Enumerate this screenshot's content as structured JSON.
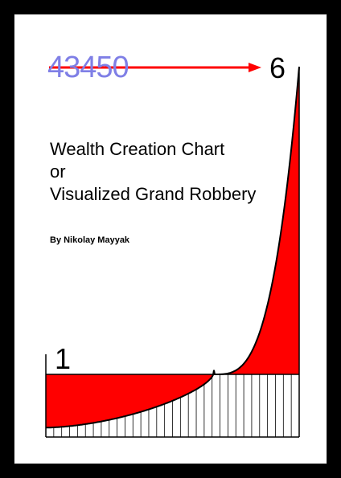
{
  "cover": {
    "start_number": "43450",
    "end_number": "6",
    "baseline_number": "1",
    "title_lines": [
      "Wealth Creation Chart",
      "or",
      "Visualized Grand Robbery"
    ],
    "author": "By Nikolay Mayyak"
  },
  "colors": {
    "background": "#000000",
    "page": "#ffffff",
    "fill": "#ff0000",
    "arrow": "#ff0000",
    "faded_number": "#7f7fe6",
    "ink": "#000000"
  }
}
